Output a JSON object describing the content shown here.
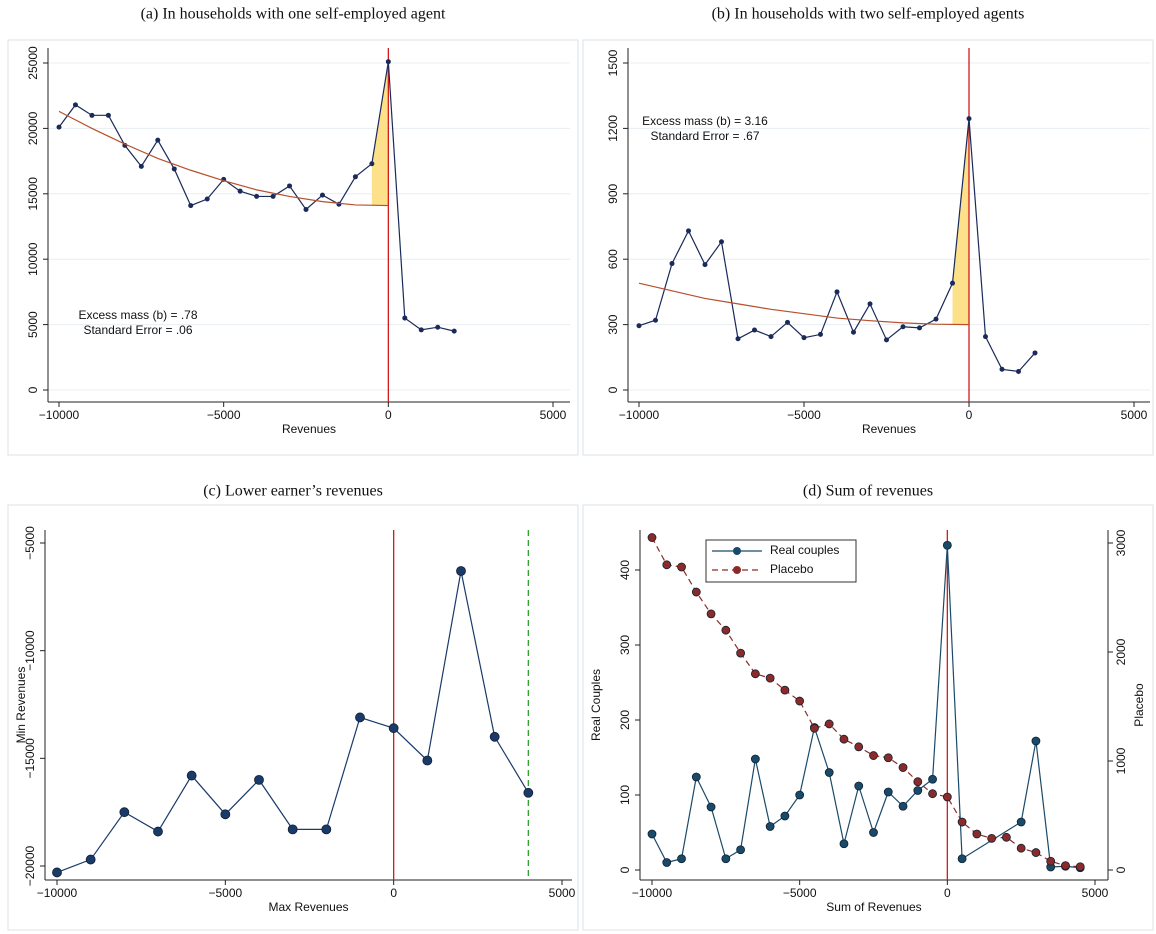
{
  "chart_data": [
    {
      "type": "line",
      "title": "(a) In households with one self-employed agent",
      "xlabel": "Revenues",
      "xlim": [
        -10000,
        5000
      ],
      "ylim": [
        0,
        25000
      ],
      "xticks": [
        {
          "value": -10000,
          "label": "−10000"
        },
        {
          "value": -5000,
          "label": "−5000"
        },
        0,
        5000
      ],
      "yticks": [
        0,
        5000,
        10000,
        15000,
        20000,
        25000
      ],
      "grid": true,
      "series": [
        {
          "color": "#1a2a5a",
          "marker": true,
          "x": [
            -10000,
            -9500,
            -9000,
            -8500,
            -8000,
            -7500,
            -7000,
            -6500,
            -6000,
            -5500,
            -5000,
            -4500,
            -4000,
            -3500,
            -3000,
            -2500,
            -2000,
            -1500,
            -1000,
            -500,
            0,
            500,
            1000,
            1500,
            2000
          ],
          "values": [
            20100,
            21800,
            21000,
            21000,
            18700,
            17100,
            19100,
            16900,
            14100,
            14600,
            16100,
            15200,
            14800,
            14800,
            15600,
            13800,
            14900,
            14200,
            16300,
            17300,
            25100,
            5500,
            4600,
            4800,
            4500
          ]
        },
        {
          "color": "#b5502a",
          "x": [
            -10000,
            -9000,
            -8000,
            -7000,
            -6000,
            -5000,
            -4000,
            -3000,
            -2000,
            -1000,
            0
          ],
          "values": [
            21300,
            20000,
            18800,
            17700,
            16800,
            16000,
            15300,
            14800,
            14400,
            14150,
            14100
          ]
        }
      ],
      "shaded_range": [
        -500,
        0
      ],
      "shade_color": "#fde08a",
      "vlines": [
        {
          "x": 0,
          "color": "#d41a1a"
        }
      ],
      "annotations": [
        "Excess mass (b) = .78",
        "Standard Error = .06"
      ]
    },
    {
      "type": "line",
      "title": "(b) In households with two self-employed agents",
      "xlabel": "Revenues",
      "xlim": [
        -10000,
        5000
      ],
      "ylim": [
        0,
        1500
      ],
      "xticks": [
        {
          "value": -10000,
          "label": "−10000"
        },
        {
          "value": -5000,
          "label": "−5000"
        },
        0,
        5000
      ],
      "yticks": [
        0,
        300,
        600,
        900,
        1200,
        1500
      ],
      "grid": true,
      "series": [
        {
          "color": "#1a2a5a",
          "marker": true,
          "x": [
            -10000,
            -9500,
            -9000,
            -8500,
            -8000,
            -7500,
            -7000,
            -6500,
            -6000,
            -5500,
            -5000,
            -4500,
            -4000,
            -3500,
            -3000,
            -2500,
            -2000,
            -1500,
            -1000,
            -500,
            0,
            500,
            1000,
            1500,
            2000
          ],
          "values": [
            295,
            320,
            580,
            730,
            575,
            680,
            235,
            275,
            245,
            310,
            240,
            255,
            450,
            265,
            395,
            230,
            290,
            285,
            325,
            490,
            1245,
            245,
            95,
            85,
            170
          ]
        },
        {
          "color": "#b5502a",
          "x": [
            -10000,
            -9000,
            -8000,
            -7000,
            -6000,
            -5000,
            -4000,
            -3000,
            -2000,
            -1000,
            0
          ],
          "values": [
            490,
            455,
            420,
            395,
            370,
            350,
            330,
            318,
            308,
            302,
            300
          ]
        }
      ],
      "shaded_range": [
        -500,
        0
      ],
      "shade_color": "#fde08a",
      "vlines": [
        {
          "x": 0,
          "color": "#d41a1a"
        }
      ],
      "annotations": [
        "Excess mass (b) = 3.16",
        "Standard Error = .67"
      ]
    },
    {
      "type": "line",
      "title": "(c) Lower earner’s revenues",
      "xlabel": "Max Revenues",
      "ylabel": "Min Revenues",
      "xlim": [
        -10000,
        5000
      ],
      "ylim": [
        -20000,
        -5000
      ],
      "xticks": [
        {
          "value": -10000,
          "label": "−10000"
        },
        {
          "value": -5000,
          "label": "−5000"
        },
        0,
        5000
      ],
      "yticks": [
        {
          "value": -20000,
          "label": "−20000"
        },
        {
          "value": -15000,
          "label": "−15000"
        },
        {
          "value": -10000,
          "label": "−10000"
        },
        {
          "value": -5000,
          "label": "−5000"
        }
      ],
      "grid": false,
      "series": [
        {
          "color": "#1a3a6a",
          "marker": true,
          "x": [
            -10000,
            -9000,
            -8000,
            -7000,
            -6000,
            -5000,
            -4000,
            -3000,
            -2000,
            -1000,
            0,
            1000,
            2000,
            3000,
            4000
          ],
          "values": [
            -20300,
            -19700,
            -17500,
            -18400,
            -15800,
            -17600,
            -16000,
            -18300,
            -18300,
            -13100,
            -13600,
            -15100,
            -6300,
            -14000,
            -16600
          ]
        }
      ],
      "vlines": [
        {
          "x": 0,
          "color": "#d41a1a"
        },
        {
          "x": 4000,
          "color": "#2ca02c",
          "dash": true
        }
      ]
    },
    {
      "type": "line",
      "title": "(d) Sum of revenues",
      "xlabel": "Sum of Revenues",
      "ylabel": "Real Couples",
      "y2label": "Placebo",
      "xlim": [
        -10000,
        5000
      ],
      "ylim": [
        0,
        400
      ],
      "y2lim": [
        0,
        3000
      ],
      "xticks": [
        {
          "value": -10000,
          "label": "−10000"
        },
        {
          "value": -5000,
          "label": "−5000"
        },
        0,
        5000
      ],
      "yticks": [
        0,
        100,
        200,
        300,
        400
      ],
      "y2ticks": [
        0,
        1000,
        2000,
        3000
      ],
      "grid": false,
      "legend": "top-left",
      "series": [
        {
          "name": "Real couples",
          "color": "#1a4a6a",
          "marker": true,
          "x": [
            -10000,
            -9500,
            -9000,
            -8500,
            -8000,
            -7500,
            -7000,
            -6500,
            -6000,
            -5500,
            -5000,
            -4500,
            -4000,
            -3500,
            -3000,
            -2500,
            -2000,
            -1500,
            -1000,
            -500,
            0,
            500,
            2500,
            3000,
            3500,
            4000,
            4500
          ],
          "values": [
            48,
            10,
            15,
            124,
            84,
            15,
            27,
            148,
            58,
            72,
            100,
            190,
            130,
            35,
            112,
            50,
            104,
            85,
            106,
            121,
            433,
            15,
            64,
            172,
            4,
            5,
            3
          ]
        },
        {
          "name": "Placebo",
          "color": "#8b2a2a",
          "marker": true,
          "dash": true,
          "axis": "y2",
          "x": [
            -10000,
            -9500,
            -9000,
            -8500,
            -8000,
            -7500,
            -7000,
            -6500,
            -6000,
            -5500,
            -5000,
            -4500,
            -4000,
            -3500,
            -3000,
            -2500,
            -2000,
            -1500,
            -1000,
            -500,
            0,
            500,
            1000,
            1500,
            2000,
            2500,
            3000,
            3500,
            4000,
            4500
          ],
          "values": [
            3050,
            2800,
            2780,
            2550,
            2350,
            2200,
            1990,
            1800,
            1760,
            1650,
            1550,
            1300,
            1340,
            1200,
            1130,
            1050,
            1030,
            940,
            810,
            700,
            670,
            440,
            330,
            290,
            300,
            200,
            160,
            80,
            40,
            30
          ]
        }
      ],
      "vlines": [
        {
          "x": 0,
          "color": "#d41a1a"
        }
      ]
    }
  ]
}
